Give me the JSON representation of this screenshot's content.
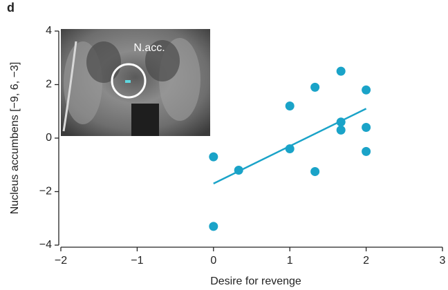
{
  "panel_label": "d",
  "inset_label": "N.acc.",
  "chart_data": {
    "type": "scatter",
    "x_label": "Desire for revenge",
    "y_label": "Nucleus accumbens [−9, 6, −3]",
    "xlim": [
      -2,
      3
    ],
    "ylim": [
      -4,
      4
    ],
    "xticks": [
      {
        "value": -2,
        "label": "−2"
      },
      {
        "value": -1,
        "label": "−1"
      },
      0,
      1,
      2,
      3
    ],
    "yticks": [
      {
        "value": -4,
        "label": "−4"
      },
      {
        "value": -2,
        "label": "−2"
      },
      0,
      2,
      4
    ],
    "series": [
      {
        "mode": "markers",
        "color": "#1aa3c8",
        "x": [
          0,
          0,
          0.33,
          1,
          1,
          1.33,
          1.33,
          1.67,
          1.67,
          1.67,
          2,
          2,
          2
        ],
        "values": [
          -0.7,
          -3.3,
          -1.2,
          1.2,
          -0.4,
          1.9,
          -1.25,
          2.5,
          0.6,
          0.3,
          1.8,
          0.4,
          -0.5
        ]
      },
      {
        "mode": "line",
        "color": "#1aa3c8",
        "x": [
          0,
          2
        ],
        "values": [
          -1.7,
          1.1
        ]
      }
    ]
  }
}
